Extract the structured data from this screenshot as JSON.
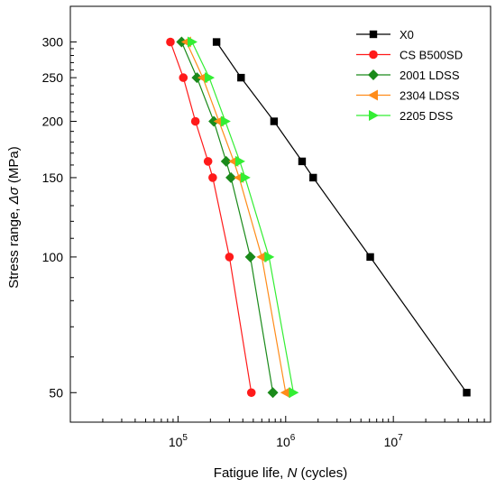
{
  "chart_data": {
    "type": "line",
    "x_scale": "log",
    "y_scale": "log",
    "xlabel": "Fatigue life, N (cycles)",
    "xlabel_parts": [
      "Fatigue life, ",
      "N",
      " (cycles)"
    ],
    "ylabel": "Stress range, Δσ (MPa)",
    "ylabel_parts": [
      "Stress range, ",
      "Δσ",
      " (MPa)"
    ],
    "xlim": [
      10000,
      80000000
    ],
    "ylim": [
      43,
      360
    ],
    "x_ticks": [
      {
        "value": 100000,
        "base": "10",
        "exp": "5"
      },
      {
        "value": 1000000,
        "base": "10",
        "exp": "6"
      },
      {
        "value": 10000000,
        "base": "10",
        "exp": "7"
      }
    ],
    "y_ticks": [
      {
        "value": 50,
        "label": "50"
      },
      {
        "value": 100,
        "label": "100"
      },
      {
        "value": 150,
        "label": "150"
      },
      {
        "value": 200,
        "label": "200"
      },
      {
        "value": 250,
        "label": "250"
      },
      {
        "value": 300,
        "label": "300"
      }
    ],
    "legend_position": "top-right",
    "series": [
      {
        "name": "X0",
        "color": "#000000",
        "marker": "square",
        "points": [
          [
            228000,
            300
          ],
          [
            385000,
            250
          ],
          [
            780000,
            200
          ],
          [
            1420000,
            163
          ],
          [
            1800000,
            150
          ],
          [
            6100000,
            100
          ],
          [
            48000000,
            50
          ]
        ]
      },
      {
        "name": "CS B500SD",
        "color": "#ff1a1a",
        "marker": "circle",
        "points": [
          [
            85000,
            300
          ],
          [
            112000,
            250
          ],
          [
            145000,
            200
          ],
          [
            190000,
            163
          ],
          [
            210000,
            150
          ],
          [
            300000,
            100
          ],
          [
            480000,
            50
          ]
        ]
      },
      {
        "name": "2001 LDSS",
        "color": "#1a8a1a",
        "marker": "diamond",
        "points": [
          [
            108000,
            300
          ],
          [
            150000,
            250
          ],
          [
            215000,
            200
          ],
          [
            280000,
            163
          ],
          [
            310000,
            150
          ],
          [
            470000,
            100
          ],
          [
            760000,
            50
          ]
        ]
      },
      {
        "name": "2304 LDSS",
        "color": "#ff8c1a",
        "marker": "triangle-left",
        "points": [
          [
            120000,
            300
          ],
          [
            170000,
            250
          ],
          [
            240000,
            200
          ],
          [
            330000,
            163
          ],
          [
            370000,
            150
          ],
          [
            600000,
            100
          ],
          [
            1000000,
            50
          ]
        ]
      },
      {
        "name": "2205 DSS",
        "color": "#33ee33",
        "marker": "triangle-right",
        "points": [
          [
            135000,
            300
          ],
          [
            195000,
            250
          ],
          [
            275000,
            200
          ],
          [
            375000,
            163
          ],
          [
            420000,
            150
          ],
          [
            700000,
            100
          ],
          [
            1180000,
            50
          ]
        ]
      }
    ]
  }
}
